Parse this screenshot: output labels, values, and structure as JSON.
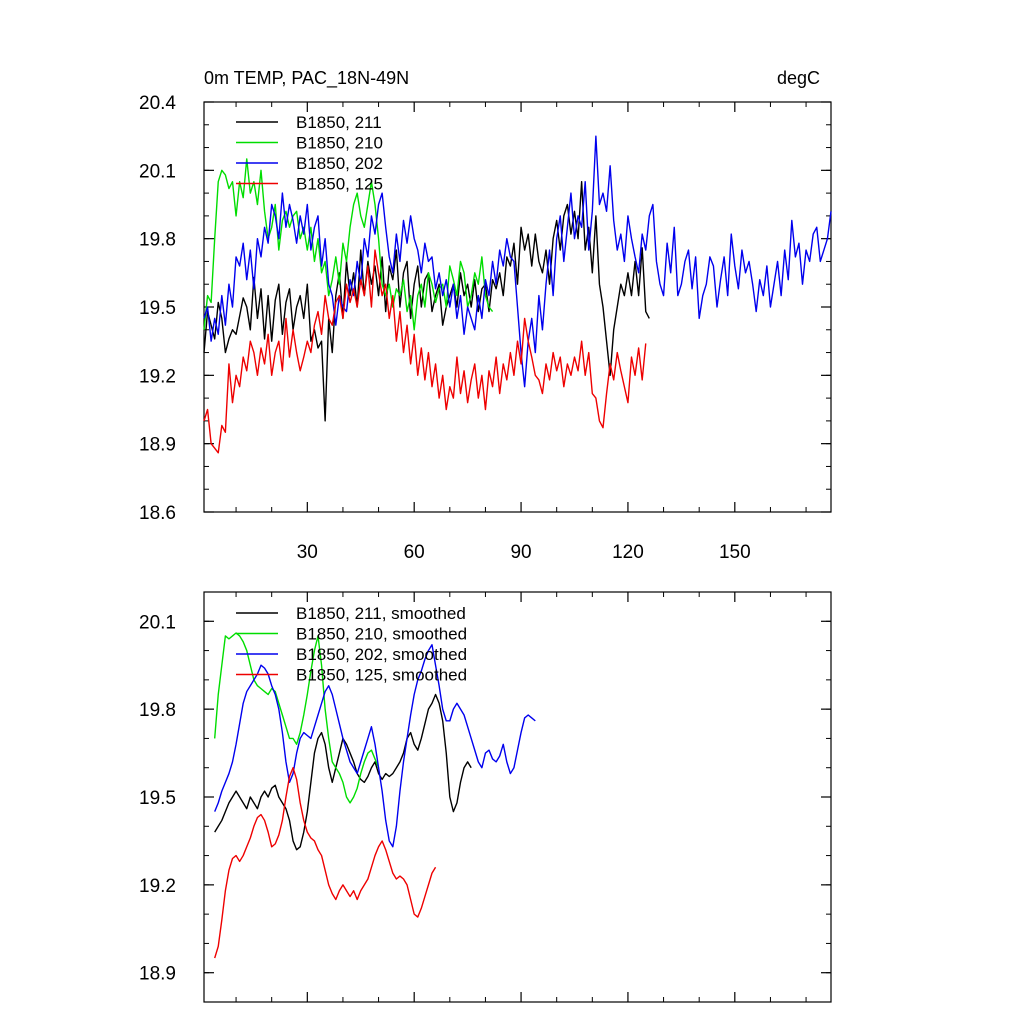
{
  "chart_data": [
    {
      "type": "line",
      "title": "0m TEMP, PAC_18N-49N",
      "units_label": "degC",
      "xlim": [
        1,
        177
      ],
      "ylim": [
        18.6,
        20.4
      ],
      "yticks": [
        18.6,
        18.9,
        19.2,
        19.5,
        19.8,
        20.1,
        20.4
      ],
      "xticks": [
        30,
        60,
        90,
        120,
        150
      ],
      "grid": false,
      "legend_position": "top-left",
      "series": [
        {
          "name": "B1850, 211",
          "color": "#000000",
          "start_x": 1,
          "values": [
            19.3,
            19.48,
            19.42,
            19.36,
            19.52,
            19.45,
            19.3,
            19.36,
            19.4,
            19.38,
            19.46,
            19.54,
            19.5,
            19.4,
            19.63,
            19.45,
            19.58,
            19.36,
            19.55,
            19.35,
            19.53,
            19.6,
            19.38,
            19.52,
            19.58,
            19.4,
            19.5,
            19.55,
            19.45,
            19.6,
            19.35,
            19.4,
            19.32,
            19.35,
            19.0,
            19.45,
            19.3,
            19.55,
            19.65,
            19.45,
            19.7,
            19.55,
            19.65,
            19.5,
            19.75,
            19.55,
            19.7,
            19.6,
            19.68,
            19.55,
            19.72,
            19.48,
            19.68,
            19.62,
            19.75,
            19.5,
            19.65,
            19.7,
            19.45,
            19.6,
            19.68,
            19.5,
            19.62,
            19.65,
            19.48,
            19.55,
            19.6,
            19.42,
            19.5,
            19.55,
            19.6,
            19.5,
            19.65,
            19.55,
            19.6,
            19.5,
            19.62,
            19.48,
            19.58,
            19.6,
            19.48,
            19.62,
            19.58,
            19.65,
            19.55,
            19.72,
            19.68,
            19.78,
            19.6,
            19.85,
            19.75,
            19.82,
            19.68,
            19.82,
            19.7,
            19.65,
            19.75,
            19.6,
            19.8,
            19.88,
            19.75,
            19.9,
            19.95,
            19.82,
            19.92,
            19.8,
            20.05,
            19.75,
            19.85,
            19.65,
            19.9,
            19.6,
            19.5,
            19.35,
            19.2,
            19.4,
            19.5,
            19.6,
            19.55,
            19.65,
            19.55,
            19.7,
            19.55,
            19.76,
            19.48,
            19.45
          ]
        },
        {
          "name": "B1850, 210",
          "color": "#00dd00",
          "start_x": 1,
          "values": [
            19.4,
            19.55,
            19.52,
            19.8,
            20.05,
            20.1,
            20.08,
            20.02,
            20.05,
            19.9,
            20.05,
            19.98,
            20.15,
            20.0,
            20.05,
            19.95,
            20.1,
            19.92,
            19.8,
            19.85,
            19.95,
            19.75,
            19.88,
            19.92,
            19.85,
            19.9,
            19.92,
            19.8,
            19.85,
            19.75,
            19.85,
            19.7,
            19.8,
            19.65,
            19.7,
            19.55,
            19.62,
            19.72,
            19.6,
            19.78,
            19.7,
            19.85,
            19.95,
            20.0,
            19.9,
            19.85,
            19.95,
            20.05,
            19.95,
            19.8,
            19.6,
            19.55,
            19.6,
            19.5,
            19.58,
            19.55,
            19.62,
            19.48,
            19.55,
            19.4,
            19.55,
            19.6,
            19.5,
            19.65,
            19.6,
            19.52,
            19.58,
            19.6,
            19.5,
            19.68,
            19.62,
            19.55,
            19.7,
            19.65,
            19.5,
            19.55,
            19.65,
            19.6,
            19.72,
            19.55,
            19.5,
            19.48
          ]
        },
        {
          "name": "B1850, 202",
          "color": "#0000ee",
          "start_x": 1,
          "values": [
            19.45,
            19.5,
            19.35,
            19.45,
            19.38,
            19.55,
            19.42,
            19.6,
            19.5,
            19.72,
            19.68,
            19.78,
            19.62,
            19.75,
            19.58,
            19.8,
            19.72,
            19.85,
            19.78,
            19.95,
            19.9,
            19.8,
            20.0,
            19.85,
            19.95,
            19.88,
            19.78,
            19.9,
            19.82,
            19.95,
            19.75,
            19.85,
            19.9,
            19.68,
            19.8,
            19.6,
            19.55,
            19.42,
            19.55,
            19.5,
            19.48,
            19.62,
            19.55,
            19.7,
            19.6,
            19.8,
            19.72,
            19.9,
            19.82,
            19.95,
            20.0,
            19.85,
            19.72,
            19.65,
            19.82,
            19.7,
            19.88,
            19.78,
            19.9,
            19.8,
            19.75,
            19.65,
            19.78,
            19.7,
            19.72,
            19.58,
            19.65,
            19.55,
            19.62,
            19.5,
            19.6,
            19.45,
            19.55,
            19.38,
            19.5,
            19.45,
            19.4,
            19.55,
            19.45,
            19.62,
            19.55,
            19.7,
            19.6,
            19.75,
            19.68,
            19.8,
            19.72,
            19.7,
            19.5,
            19.3,
            19.15,
            19.35,
            19.45,
            19.3,
            19.55,
            19.4,
            19.6,
            19.75,
            19.55,
            19.8,
            19.9,
            19.7,
            19.85,
            20.0,
            19.8,
            19.9,
            19.85,
            20.05,
            19.75,
            19.92,
            20.25,
            19.95,
            20.0,
            19.92,
            20.12,
            19.88,
            19.75,
            19.82,
            19.7,
            19.9,
            19.8,
            19.72,
            19.65,
            19.82,
            19.75,
            19.9,
            19.95,
            19.7,
            19.6,
            19.55,
            19.78,
            19.65,
            19.85,
            19.55,
            19.6,
            19.7,
            19.75,
            19.58,
            19.72,
            19.45,
            19.55,
            19.6,
            19.72,
            19.68,
            19.5,
            19.62,
            19.72,
            19.55,
            19.82,
            19.68,
            19.58,
            19.75,
            19.65,
            19.7,
            19.6,
            19.48,
            19.62,
            19.55,
            19.68,
            19.5,
            19.6,
            19.7,
            19.55,
            19.75,
            19.62,
            19.88,
            19.72,
            19.78,
            19.6,
            19.75,
            19.7,
            19.82,
            19.85,
            19.7,
            19.75,
            19.8,
            19.92
          ]
        },
        {
          "name": "B1850, 125",
          "color": "#ee0000",
          "start_x": 1,
          "values": [
            19.0,
            19.05,
            18.9,
            18.88,
            18.86,
            18.98,
            18.95,
            19.25,
            19.08,
            19.2,
            19.15,
            19.28,
            19.22,
            19.35,
            19.3,
            19.2,
            19.32,
            19.25,
            19.38,
            19.2,
            19.3,
            19.35,
            19.22,
            19.45,
            19.28,
            19.4,
            19.3,
            19.22,
            19.28,
            19.35,
            19.3,
            19.42,
            19.48,
            19.38,
            19.55,
            19.45,
            19.42,
            19.52,
            19.55,
            19.45,
            19.6,
            19.52,
            19.58,
            19.5,
            19.62,
            19.55,
            19.68,
            19.5,
            19.75,
            19.65,
            19.55,
            19.6,
            19.45,
            19.55,
            19.35,
            19.48,
            19.3,
            19.42,
            19.25,
            19.38,
            19.2,
            19.32,
            19.18,
            19.3,
            19.15,
            19.25,
            19.1,
            19.2,
            19.05,
            19.15,
            19.1,
            19.28,
            19.12,
            19.22,
            19.08,
            19.18,
            19.25,
            19.1,
            19.2,
            19.05,
            19.22,
            19.15,
            19.28,
            19.12,
            19.25,
            19.18,
            19.3,
            19.2,
            19.35,
            19.25,
            19.45,
            19.35,
            19.28,
            19.2,
            19.18,
            19.12,
            19.25,
            19.18,
            19.3,
            19.22,
            19.28,
            19.15,
            19.25,
            19.2,
            19.28,
            19.22,
            19.35,
            19.2,
            19.3,
            19.12,
            19.1,
            19.0,
            18.97,
            19.12,
            19.25,
            19.18,
            19.3,
            19.22,
            19.15,
            19.08,
            19.28,
            19.2,
            19.32,
            19.18,
            19.34
          ]
        }
      ]
    },
    {
      "type": "line",
      "title": "",
      "xlim": [
        1,
        177
      ],
      "ylim": [
        18.8,
        20.2
      ],
      "yticks": [
        18.9,
        19.2,
        19.5,
        19.8,
        20.1
      ],
      "xticks": [
        30,
        60,
        90,
        120,
        150
      ],
      "grid": false,
      "legend_position": "top-left",
      "series": [
        {
          "name": "B1850, 211, smoothed",
          "color": "#000000",
          "start_x": 4,
          "values": [
            19.38,
            19.4,
            19.42,
            19.45,
            19.48,
            19.5,
            19.52,
            19.5,
            19.48,
            19.46,
            19.5,
            19.48,
            19.46,
            19.5,
            19.52,
            19.5,
            19.53,
            19.54,
            19.5,
            19.48,
            19.46,
            19.42,
            19.35,
            19.32,
            19.33,
            19.38,
            19.45,
            19.55,
            19.65,
            19.7,
            19.72,
            19.68,
            19.6,
            19.55,
            19.6,
            19.65,
            19.7,
            19.68,
            19.65,
            19.62,
            19.58,
            19.56,
            19.55,
            19.57,
            19.6,
            19.62,
            19.58,
            19.56,
            19.58,
            19.57,
            19.58,
            19.6,
            19.62,
            19.65,
            19.7,
            19.72,
            19.68,
            19.66,
            19.7,
            19.75,
            19.8,
            19.82,
            19.85,
            19.82,
            19.76,
            19.65,
            19.5,
            19.45,
            19.48,
            19.55,
            19.6,
            19.62,
            19.6
          ]
        },
        {
          "name": "B1850, 210, smoothed",
          "color": "#00dd00",
          "start_x": 4,
          "values": [
            19.7,
            19.85,
            19.95,
            20.05,
            20.04,
            20.05,
            20.06,
            20.05,
            20.03,
            20.0,
            19.95,
            19.9,
            19.88,
            19.87,
            19.86,
            19.85,
            19.87,
            19.86,
            19.82,
            19.78,
            19.74,
            19.7,
            19.7,
            19.68,
            19.72,
            19.78,
            19.85,
            19.93,
            20.0,
            20.05,
            19.95,
            19.8,
            19.7,
            19.62,
            19.6,
            19.58,
            19.55,
            19.5,
            19.48,
            19.5,
            19.53,
            19.58,
            19.62,
            19.65,
            19.66,
            19.63,
            19.6
          ]
        },
        {
          "name": "B1850, 202, smoothed",
          "color": "#0000ee",
          "start_x": 4,
          "values": [
            19.45,
            19.48,
            19.52,
            19.55,
            19.58,
            19.62,
            19.68,
            19.75,
            19.82,
            19.86,
            19.88,
            19.9,
            19.92,
            19.95,
            19.94,
            19.92,
            19.88,
            19.85,
            19.8,
            19.72,
            19.62,
            19.55,
            19.58,
            19.65,
            19.7,
            19.72,
            19.71,
            19.7,
            19.74,
            19.78,
            19.82,
            19.86,
            19.88,
            19.85,
            19.8,
            19.75,
            19.7,
            19.66,
            19.62,
            19.6,
            19.58,
            19.62,
            19.66,
            19.7,
            19.74,
            19.68,
            19.6,
            19.52,
            19.42,
            19.35,
            19.33,
            19.4,
            19.52,
            19.62,
            19.7,
            19.78,
            19.85,
            19.9,
            19.93,
            19.97,
            20.0,
            20.02,
            19.95,
            19.88,
            19.8,
            19.76,
            19.76,
            19.8,
            19.82,
            19.8,
            19.78,
            19.74,
            19.7,
            19.66,
            19.62,
            19.6,
            19.65,
            19.66,
            19.63,
            19.62,
            19.64,
            19.68,
            19.62,
            19.58,
            19.6,
            19.66,
            19.72,
            19.77,
            19.78,
            19.77,
            19.76
          ]
        },
        {
          "name": "B1850, 125, smoothed",
          "color": "#ee0000",
          "start_x": 4,
          "values": [
            18.95,
            18.99,
            19.08,
            19.18,
            19.25,
            19.29,
            19.3,
            19.28,
            19.3,
            19.33,
            19.36,
            19.4,
            19.43,
            19.44,
            19.42,
            19.38,
            19.33,
            19.34,
            19.37,
            19.42,
            19.5,
            19.57,
            19.6,
            19.56,
            19.48,
            19.42,
            19.38,
            19.36,
            19.35,
            19.32,
            19.3,
            19.25,
            19.2,
            19.17,
            19.15,
            19.18,
            19.2,
            19.18,
            19.16,
            19.18,
            19.15,
            19.18,
            19.2,
            19.22,
            19.26,
            19.3,
            19.33,
            19.35,
            19.32,
            19.28,
            19.24,
            19.22,
            19.23,
            19.22,
            19.2,
            19.15,
            19.1,
            19.09,
            19.12,
            19.16,
            19.2,
            19.24,
            19.26
          ]
        }
      ]
    }
  ]
}
